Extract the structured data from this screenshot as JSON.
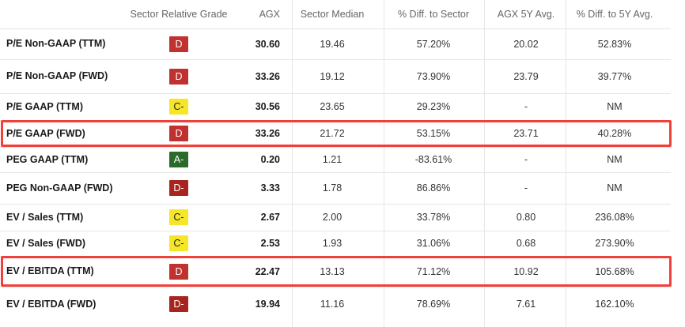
{
  "columns": {
    "grade": "Sector Relative Grade",
    "agx": "AGX",
    "median": "Sector Median",
    "diff": "% Diff. to Sector",
    "avg5": "AGX 5Y Avg.",
    "diff5": "% Diff. to 5Y Avg."
  },
  "rows": [
    {
      "metric": "P/E Non-GAAP (TTM)",
      "grade": "D",
      "agx": "30.60",
      "median": "19.46",
      "diff": "57.20%",
      "avg5": "20.02",
      "diff5": "52.83%"
    },
    {
      "metric": "P/E Non-GAAP (FWD)",
      "grade": "D",
      "agx": "33.26",
      "median": "19.12",
      "diff": "73.90%",
      "avg5": "23.79",
      "diff5": "39.77%"
    },
    {
      "metric": "P/E GAAP (TTM)",
      "grade": "C-",
      "agx": "30.56",
      "median": "23.65",
      "diff": "29.23%",
      "avg5": "-",
      "diff5": "NM"
    },
    {
      "metric": "P/E GAAP (FWD)",
      "grade": "D",
      "agx": "33.26",
      "median": "21.72",
      "diff": "53.15%",
      "avg5": "23.71",
      "diff5": "40.28%"
    },
    {
      "metric": "PEG GAAP (TTM)",
      "grade": "A-",
      "agx": "0.20",
      "median": "1.21",
      "diff": "-83.61%",
      "avg5": "-",
      "diff5": "NM"
    },
    {
      "metric": "PEG Non-GAAP (FWD)",
      "grade": "D-",
      "agx": "3.33",
      "median": "1.78",
      "diff": "86.86%",
      "avg5": "-",
      "diff5": "NM"
    },
    {
      "metric": "EV / Sales (TTM)",
      "grade": "C-",
      "agx": "2.67",
      "median": "2.00",
      "diff": "33.78%",
      "avg5": "0.80",
      "diff5": "236.08%"
    },
    {
      "metric": "EV / Sales (FWD)",
      "grade": "C-",
      "agx": "2.53",
      "median": "1.93",
      "diff": "31.06%",
      "avg5": "0.68",
      "diff5": "273.90%"
    },
    {
      "metric": "EV / EBITDA (TTM)",
      "grade": "D",
      "agx": "22.47",
      "median": "13.13",
      "diff": "71.12%",
      "avg5": "10.92",
      "diff5": "105.68%"
    },
    {
      "metric": "EV / EBITDA (FWD)",
      "grade": "D-",
      "agx": "19.94",
      "median": "11.16",
      "diff": "78.69%",
      "avg5": "7.61",
      "diff5": "162.10%"
    }
  ],
  "highlighted_rows": [
    "P/E GAAP (FWD)",
    "EV / EBITDA (TTM)"
  ],
  "grade_colors": {
    "D": "#c0322f",
    "D-": "#a8241f",
    "C-": "#f5e62a",
    "A-": "#2b6b2a"
  },
  "highlight_color": "#f0403a"
}
